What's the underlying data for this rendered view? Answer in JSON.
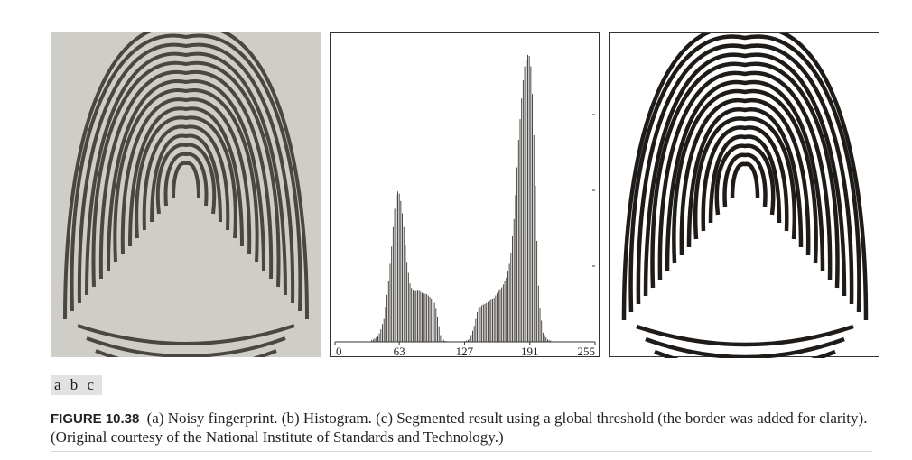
{
  "figure": {
    "panel_a": {
      "description_icon": "fingerprint-icon"
    },
    "panel_c": {
      "description_icon": "fingerprint-icon"
    },
    "subfigure_labels": [
      "a",
      "b",
      "c"
    ],
    "caption_label": "FIGURE 10.38",
    "caption_text": "(a) Noisy fingerprint. (b) Histogram. (c) Segmented result using a global threshold (the border was added for clarity). (Original courtesy of the National Institute of Standards and Technology.)"
  },
  "chart_data": {
    "type": "bar",
    "title": "",
    "xlabel": "",
    "ylabel": "",
    "xlim": [
      0,
      255
    ],
    "x_ticks": [
      "0",
      "63",
      "127",
      "191",
      "255"
    ],
    "x_tick_values": [
      0,
      63,
      127,
      191,
      255
    ],
    "grid": false,
    "series": [
      {
        "x": [
          36,
          40,
          44,
          48,
          52,
          56,
          58,
          60,
          62,
          64,
          66,
          68,
          70,
          74,
          78,
          82,
          86,
          90,
          94,
          98,
          100,
          104,
          108,
          112,
          116,
          120,
          124,
          128,
          132,
          136,
          140,
          144,
          148,
          152,
          156,
          160,
          164,
          168,
          172,
          176,
          180,
          184,
          186,
          188,
          190,
          192,
          194,
          196,
          198,
          200,
          204,
          208,
          212
        ],
        "values": [
          2,
          4,
          10,
          25,
          60,
          110,
          140,
          160,
          165,
          158,
          140,
          120,
          90,
          60,
          55,
          56,
          53,
          52,
          48,
          42,
          30,
          4,
          1,
          0,
          0,
          0,
          0,
          1,
          3,
          15,
          35,
          40,
          42,
          45,
          48,
          55,
          60,
          70,
          90,
          140,
          220,
          280,
          300,
          310,
          315,
          300,
          260,
          190,
          110,
          45,
          10,
          3,
          1
        ]
      }
    ],
    "ylim": [
      0,
      330
    ]
  }
}
